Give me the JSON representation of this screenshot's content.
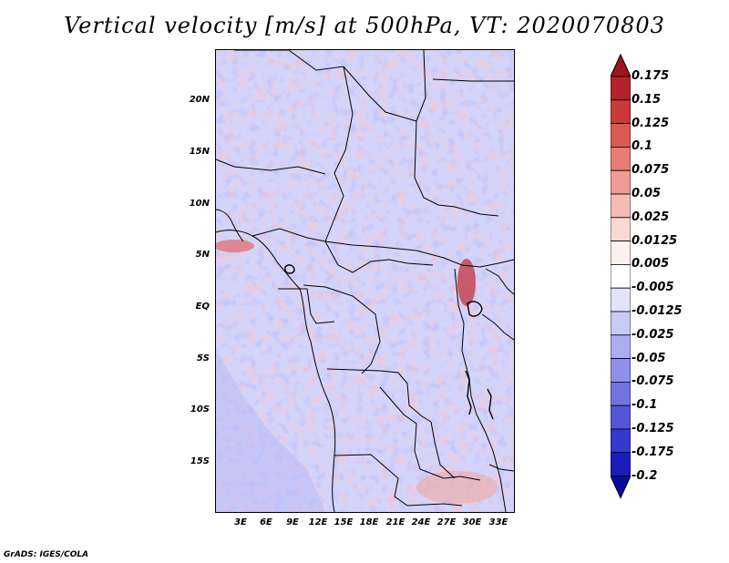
{
  "title": "Vertical velocity [m/s] at 500hPa, VT: 2020070803",
  "lat_labels": [
    "20N",
    "15N",
    "10N",
    "5N",
    "EQ",
    "5S",
    "10S",
    "15S"
  ],
  "lon_labels": [
    "3E",
    "6E",
    "9E",
    "12E",
    "15E",
    "18E",
    "21E",
    "24E",
    "27E",
    "30E",
    "33E"
  ],
  "colorbar": {
    "labels": [
      "0.175",
      "0.15",
      "0.125",
      "0.1",
      "0.075",
      "0.05",
      "0.025",
      "0.0125",
      "0.005",
      "-0.005",
      "-0.0125",
      "-0.025",
      "-0.05",
      "-0.075",
      "-0.1",
      "-0.125",
      "-0.175",
      "-0.2"
    ],
    "colors": [
      "#a1141c",
      "#b5212a",
      "#c93a3a",
      "#da5a54",
      "#e57c76",
      "#ee9c95",
      "#f5bcb5",
      "#fad9d4",
      "#fdf0ee",
      "#ffffff",
      "#e3e3fb",
      "#cacaf7",
      "#adadf1",
      "#9090ea",
      "#7373e2",
      "#5555d8",
      "#3838cc",
      "#1c1cbb",
      "#0a0aa4"
    ]
  },
  "credit": "GrADS: IGES/COLA"
}
